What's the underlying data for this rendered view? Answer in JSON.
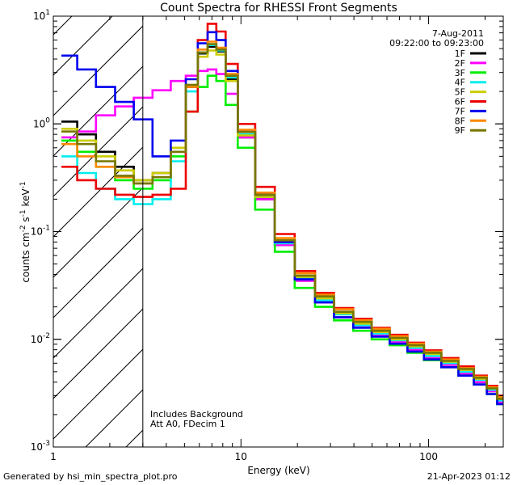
{
  "chart_data": {
    "type": "line",
    "title": "Count Spectra for RHESSI Front Segments",
    "xlabel": "Energy (keV)",
    "ylabel_main": "counts cm",
    "ylabel_sup1": "-2",
    "ylabel_mid": " s",
    "ylabel_sup2": "-1",
    "ylabel_end": " keV",
    "ylabel_sup3": "-1",
    "xscale": "log",
    "yscale": "log",
    "xlim": [
      1,
      250
    ],
    "ylim": [
      0.001,
      10
    ],
    "x_ticks": [
      {
        "value": 1,
        "label": "1"
      },
      {
        "value": 10,
        "label": "10"
      },
      {
        "value": 100,
        "label": "100"
      }
    ],
    "y_ticks": [
      {
        "value": 10,
        "base": "10",
        "exp": "1"
      },
      {
        "value": 1,
        "base": "10",
        "exp": "0"
      },
      {
        "value": 0.1,
        "base": "10",
        "exp": "-1"
      },
      {
        "value": 0.01,
        "base": "10",
        "exp": "-2"
      },
      {
        "value": 0.001,
        "base": "10",
        "exp": "-3"
      }
    ],
    "date": "7-Aug-2011",
    "time_range": "09:22:00 to 09:23:00",
    "annotation_lines": [
      "Includes Background",
      "Att A0, FDecim 1"
    ],
    "excluded_region_max_kev": 3,
    "legend_position": "top-right",
    "series": [
      {
        "name": "1F",
        "color": "#000000",
        "values": [
          1.05,
          0.8,
          0.55,
          0.4,
          0.3,
          0.35,
          0.6,
          2.2,
          4.5,
          5.2,
          4.7,
          2.6,
          0.75,
          0.2,
          0.075,
          0.035,
          0.022,
          0.016,
          0.013,
          0.011,
          0.0095,
          0.008,
          0.0068,
          0.0058,
          0.0048,
          0.004,
          0.0033,
          0.0026
        ]
      },
      {
        "name": "2F",
        "color": "#ff00ff",
        "values": [
          0.75,
          0.85,
          1.2,
          1.45,
          1.75,
          2.05,
          2.5,
          2.8,
          3.1,
          3.2,
          2.9,
          1.9,
          0.75,
          0.2,
          0.075,
          0.035,
          0.022,
          0.016,
          0.013,
          0.011,
          0.0095,
          0.008,
          0.0068,
          0.0058,
          0.0048,
          0.004,
          0.0033,
          0.0026
        ]
      },
      {
        "name": "3F",
        "color": "#00ee00",
        "values": [
          0.7,
          0.55,
          0.4,
          0.3,
          0.25,
          0.3,
          0.5,
          1.3,
          2.2,
          2.8,
          2.5,
          1.5,
          0.6,
          0.16,
          0.065,
          0.03,
          0.02,
          0.015,
          0.012,
          0.01,
          0.0088,
          0.0075,
          0.0064,
          0.0055,
          0.0046,
          0.0038,
          0.0031,
          0.0025
        ]
      },
      {
        "name": "4F",
        "color": "#00eeee",
        "values": [
          0.5,
          0.35,
          0.25,
          0.2,
          0.18,
          0.2,
          0.45,
          2.0,
          4.6,
          5.4,
          4.8,
          2.7,
          0.8,
          0.21,
          0.078,
          0.037,
          0.023,
          0.017,
          0.0135,
          0.0113,
          0.0098,
          0.0083,
          0.007,
          0.006,
          0.005,
          0.0042,
          0.0034,
          0.0027
        ]
      },
      {
        "name": "5F",
        "color": "#cccc00",
        "values": [
          0.9,
          0.7,
          0.5,
          0.37,
          0.3,
          0.35,
          0.6,
          2.3,
          4.2,
          4.8,
          4.4,
          2.5,
          0.78,
          0.21,
          0.08,
          0.038,
          0.024,
          0.0175,
          0.014,
          0.0117,
          0.01,
          0.0086,
          0.0073,
          0.0062,
          0.0052,
          0.0043,
          0.0035,
          0.0028
        ]
      },
      {
        "name": "6F",
        "color": "#ee0000",
        "values": [
          0.4,
          0.3,
          0.25,
          0.22,
          0.21,
          0.22,
          0.25,
          1.3,
          6.0,
          8.5,
          7.2,
          3.6,
          1.0,
          0.26,
          0.095,
          0.043,
          0.027,
          0.0195,
          0.0155,
          0.0128,
          0.011,
          0.0093,
          0.0079,
          0.0067,
          0.0056,
          0.0046,
          0.0037,
          0.003
        ]
      },
      {
        "name": "7F",
        "color": "#0000ee",
        "values": [
          4.3,
          3.2,
          2.2,
          1.6,
          1.1,
          0.5,
          0.7,
          2.6,
          5.6,
          7.1,
          6.0,
          3.1,
          0.85,
          0.22,
          0.08,
          0.036,
          0.022,
          0.016,
          0.0128,
          0.0106,
          0.0091,
          0.0077,
          0.0065,
          0.0055,
          0.0046,
          0.0038,
          0.0031,
          0.0025
        ]
      },
      {
        "name": "8F",
        "color": "#ff8800",
        "values": [
          0.65,
          0.5,
          0.4,
          0.32,
          0.28,
          0.32,
          0.55,
          2.2,
          4.9,
          5.8,
          5.1,
          2.9,
          0.88,
          0.23,
          0.087,
          0.041,
          0.026,
          0.019,
          0.015,
          0.0125,
          0.0107,
          0.0091,
          0.0077,
          0.0065,
          0.0054,
          0.0045,
          0.0036,
          0.0029
        ]
      },
      {
        "name": "9F",
        "color": "#777700",
        "values": [
          0.85,
          0.65,
          0.45,
          0.33,
          0.28,
          0.32,
          0.55,
          2.3,
          4.6,
          5.5,
          4.9,
          2.8,
          0.84,
          0.22,
          0.083,
          0.039,
          0.025,
          0.018,
          0.0145,
          0.012,
          0.0103,
          0.0088,
          0.0075,
          0.0063,
          0.0053,
          0.0044,
          0.0035,
          0.0028
        ]
      }
    ],
    "x": [
      1.2,
      1.5,
      1.9,
      2.4,
      3.0,
      3.8,
      4.7,
      5.5,
      6.3,
      7.0,
      7.8,
      8.8,
      10.5,
      13.5,
      17,
      22,
      28,
      35,
      45,
      55,
      70,
      85,
      105,
      130,
      160,
      190,
      220,
      245
    ]
  },
  "footer": {
    "left": "Generated by hsi_min_spectra_plot.pro",
    "right": "21-Apr-2023 01:12"
  }
}
